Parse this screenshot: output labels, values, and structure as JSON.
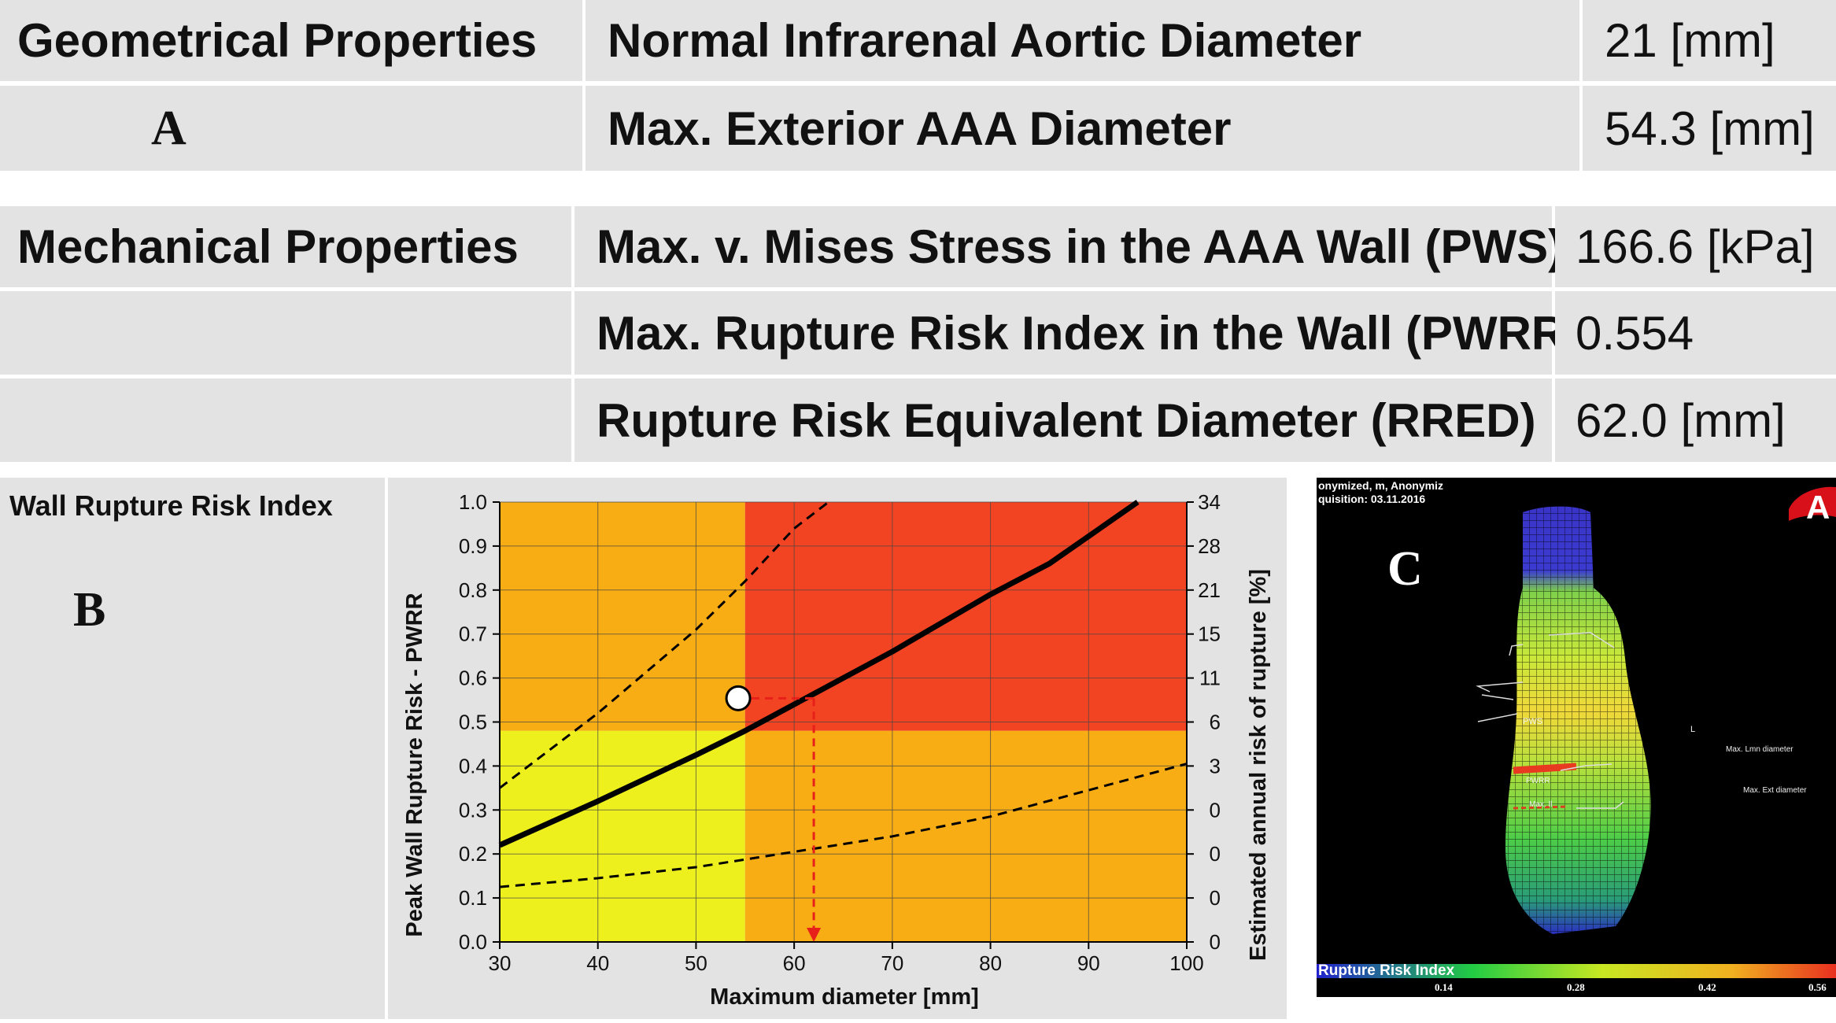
{
  "geometrical": {
    "header": "Geometrical Properties",
    "panel_letter": "A",
    "rows": [
      {
        "label": "Normal Infrarenal Aortic Diameter",
        "value": "21 [mm]"
      },
      {
        "label": "Max. Exterior AAA Diameter",
        "value": "54.3 [mm]"
      }
    ]
  },
  "mechanical": {
    "header": "Mechanical Properties",
    "rows": [
      {
        "label": "Max. v. Mises Stress in the AAA Wall (PWS)",
        "value": "166.6 [kPa]"
      },
      {
        "label": "Max. Rupture Risk Index in the Wall (PWRR)",
        "value": "0.554"
      },
      {
        "label": "Rupture Risk Equivalent Diameter (RRED)",
        "value": "62.0 [mm]"
      }
    ]
  },
  "panel_b": {
    "title": "Wall Rupture Risk Index",
    "letter": "B"
  },
  "panel_c": {
    "letter": "C",
    "header_line1": "onymized, m, Anonymiz",
    "header_line2": "quisition: 03.11.2016",
    "logo_text": "A",
    "labels": {
      "pws": "PWS",
      "l": "L",
      "max_lmn": "Max. Lmn diameter",
      "pwrr": "PWRR",
      "max_ext": "Max. Ext diameter",
      "max_il": "Max. Il"
    },
    "colorbar_title": "Rupture Risk Index",
    "colorbar_ticks": [
      "0.14",
      "0.28",
      "0.42",
      "0.56"
    ]
  },
  "colors": {
    "cell_bg": "#e3e3e3",
    "zone_yellow": "#eef01e",
    "zone_orange": "#f8ad14",
    "zone_red": "#f24422",
    "marker_line": "#e8201a"
  },
  "chart_data": {
    "type": "line",
    "xlabel": "Maximum diameter [mm]",
    "ylabel": "Peak Wall Rupture Risk - PWRR",
    "y2label": "Estimated annual risk of rupture [%]",
    "xlim": [
      30,
      100
    ],
    "ylim": [
      0,
      1.0
    ],
    "xticks": [
      30,
      40,
      50,
      60,
      70,
      80,
      90,
      100
    ],
    "yticks": [
      "0.0",
      "0.1",
      "0.2",
      "0.3",
      "0.4",
      "0.5",
      "0.6",
      "0.7",
      "0.8",
      "0.9",
      "1.0"
    ],
    "y2ticks": [
      "0",
      "0",
      "0",
      "0",
      "3",
      "6",
      "11",
      "15",
      "21",
      "28",
      "34"
    ],
    "grid": true,
    "zones": {
      "x_threshold": 55,
      "y_threshold": 0.48
    },
    "series": [
      {
        "style": "solid",
        "x": [
          30,
          40,
          50,
          55,
          60,
          70,
          80,
          86,
          95
        ],
        "y": [
          0.22,
          0.32,
          0.425,
          0.48,
          0.54,
          0.66,
          0.79,
          0.86,
          1.0
        ]
      },
      {
        "style": "dashed",
        "x": [
          30,
          40,
          50,
          55,
          60,
          63.5
        ],
        "y": [
          0.35,
          0.52,
          0.71,
          0.82,
          0.94,
          1.0
        ]
      },
      {
        "style": "dashed",
        "x": [
          30,
          40,
          50,
          60,
          70,
          80,
          90,
          100
        ],
        "y": [
          0.125,
          0.145,
          0.17,
          0.205,
          0.24,
          0.285,
          0.345,
          0.405
        ]
      }
    ],
    "marker": {
      "x": 54.3,
      "y": 0.554
    },
    "rred": {
      "x": 62.0,
      "y": 0.554
    }
  }
}
